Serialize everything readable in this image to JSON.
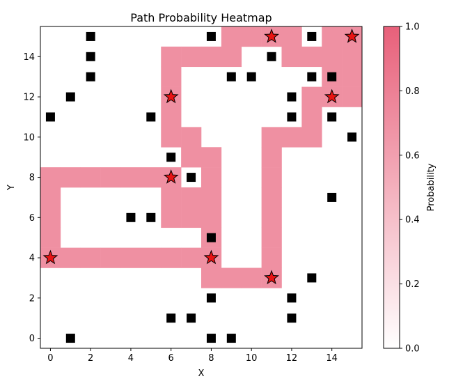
{
  "chart_data": {
    "type": "heatmap",
    "title": "Path Probability Heatmap",
    "xlabel": "X",
    "ylabel": "Y",
    "xlim": [
      -0.5,
      15.5
    ],
    "ylim": [
      -0.5,
      15.5
    ],
    "xticks": [
      0,
      2,
      4,
      6,
      8,
      10,
      12,
      14
    ],
    "yticks": [
      0,
      2,
      4,
      6,
      8,
      10,
      12,
      14
    ],
    "grid": false,
    "colorbar": {
      "label": "Probability",
      "min": 0.0,
      "max": 1.0,
      "ticks": [
        "0.0",
        "0.2",
        "0.4",
        "0.6",
        "0.8",
        "1.0"
      ],
      "color_low": "#ffffff",
      "color_high": "#e8607a"
    },
    "path_value": 0.7,
    "path_cells": [
      [
        0,
        4
      ],
      [
        1,
        4
      ],
      [
        2,
        4
      ],
      [
        3,
        4
      ],
      [
        4,
        4
      ],
      [
        5,
        4
      ],
      [
        6,
        4
      ],
      [
        7,
        4
      ],
      [
        8,
        4
      ],
      [
        0,
        5
      ],
      [
        0,
        6
      ],
      [
        0,
        7
      ],
      [
        0,
        8
      ],
      [
        1,
        8
      ],
      [
        2,
        8
      ],
      [
        3,
        8
      ],
      [
        4,
        8
      ],
      [
        5,
        8
      ],
      [
        6,
        8
      ],
      [
        8,
        3
      ],
      [
        9,
        3
      ],
      [
        10,
        3
      ],
      [
        11,
        3
      ],
      [
        11,
        4
      ],
      [
        11,
        5
      ],
      [
        11,
        6
      ],
      [
        11,
        7
      ],
      [
        11,
        8
      ],
      [
        11,
        9
      ],
      [
        11,
        10
      ],
      [
        12,
        10
      ],
      [
        13,
        10
      ],
      [
        13,
        11
      ],
      [
        13,
        12
      ],
      [
        14,
        12
      ],
      [
        15,
        12
      ],
      [
        15,
        13
      ],
      [
        15,
        14
      ],
      [
        15,
        15
      ],
      [
        14,
        15
      ],
      [
        8,
        5
      ],
      [
        8,
        6
      ],
      [
        8,
        7
      ],
      [
        8,
        8
      ],
      [
        8,
        9
      ],
      [
        7,
        6
      ],
      [
        6,
        6
      ],
      [
        6,
        7
      ],
      [
        7,
        7
      ],
      [
        7,
        9
      ],
      [
        7,
        10
      ],
      [
        6,
        10
      ],
      [
        6,
        11
      ],
      [
        6,
        12
      ],
      [
        6,
        13
      ],
      [
        6,
        14
      ],
      [
        7,
        14
      ],
      [
        8,
        14
      ],
      [
        9,
        14
      ],
      [
        9,
        15
      ],
      [
        10,
        15
      ],
      [
        11,
        15
      ],
      [
        12,
        15
      ],
      [
        12,
        14
      ],
      [
        13,
        14
      ],
      [
        14,
        14
      ],
      [
        14,
        13
      ],
      [
        14,
        12
      ]
    ],
    "obstacles": [
      [
        1,
        0
      ],
      [
        8,
        0
      ],
      [
        9,
        0
      ],
      [
        6,
        1
      ],
      [
        7,
        1
      ],
      [
        12,
        1
      ],
      [
        8,
        2
      ],
      [
        12,
        2
      ],
      [
        13,
        3
      ],
      [
        8,
        5
      ],
      [
        4,
        6
      ],
      [
        5,
        6
      ],
      [
        14,
        7
      ],
      [
        7,
        8
      ],
      [
        6,
        9
      ],
      [
        15,
        10
      ],
      [
        0,
        11
      ],
      [
        5,
        11
      ],
      [
        12,
        11
      ],
      [
        14,
        11
      ],
      [
        1,
        12
      ],
      [
        12,
        12
      ],
      [
        2,
        13
      ],
      [
        9,
        13
      ],
      [
        10,
        13
      ],
      [
        13,
        13
      ],
      [
        14,
        13
      ],
      [
        2,
        14
      ],
      [
        11,
        14
      ],
      [
        2,
        15
      ],
      [
        8,
        15
      ],
      [
        13,
        15
      ]
    ],
    "waypoints": [
      [
        0,
        4
      ],
      [
        8,
        4
      ],
      [
        11,
        3
      ],
      [
        6,
        8
      ],
      [
        6,
        12
      ],
      [
        14,
        12
      ],
      [
        11,
        15
      ],
      [
        15,
        15
      ]
    ]
  }
}
